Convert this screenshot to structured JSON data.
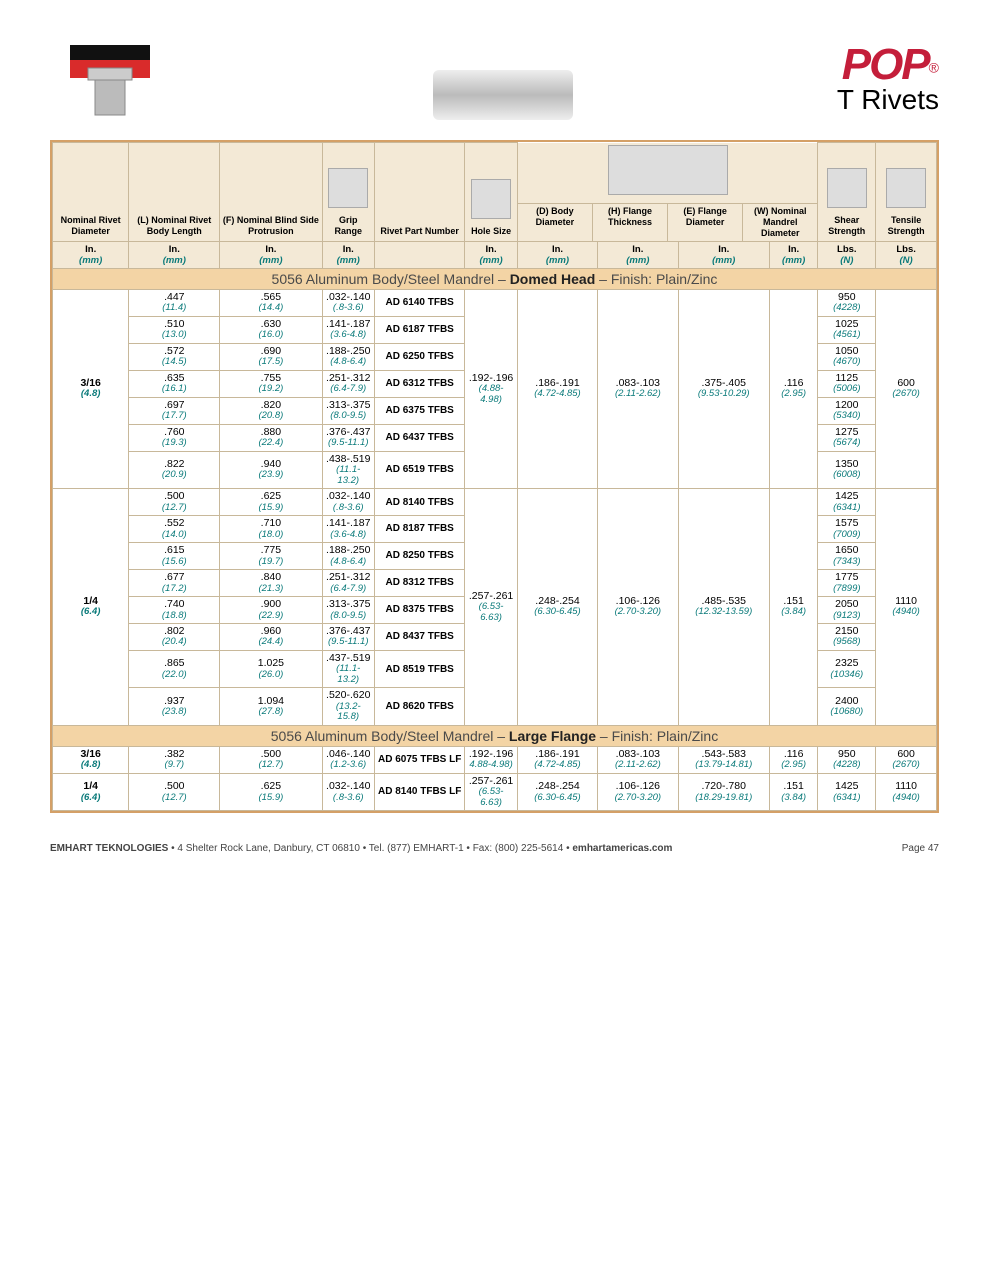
{
  "brand": {
    "name": "POP",
    "reg": "®",
    "subtitle": "T Rivets"
  },
  "columns": [
    {
      "h": "Nominal Rivet Diameter",
      "u1": "In.",
      "u2": "(mm)"
    },
    {
      "h": "(L) Nominal Rivet Body Length",
      "u1": "In.",
      "u2": "(mm)"
    },
    {
      "h": "(F) Nominal Blind Side Protrusion",
      "u1": "In.",
      "u2": "(mm)"
    },
    {
      "h": "Grip Range",
      "u1": "In.",
      "u2": "(mm)"
    },
    {
      "h": "Rivet Part Number",
      "u1": "",
      "u2": ""
    },
    {
      "h": "Hole Size",
      "u1": "In.",
      "u2": "(mm)"
    },
    {
      "h": "(D) Body Diameter",
      "u1": "In.",
      "u2": "(mm)"
    },
    {
      "h": "(H) Flange Thickness",
      "u1": "In.",
      "u2": "(mm)"
    },
    {
      "h": "(E) Flange Diameter",
      "u1": "In.",
      "u2": "(mm)"
    },
    {
      "h": "(W) Nominal Mandrel Diameter",
      "u1": "In.",
      "u2": "(mm)"
    },
    {
      "h": "Shear Strength",
      "u1": "Lbs.",
      "u2": "(N)"
    },
    {
      "h": "Tensile Strength",
      "u1": "Lbs.",
      "u2": "(N)"
    }
  ],
  "section1_title_pre": "5056 Aluminum Body/Steel Mandrel – ",
  "section1_title_bold": "Domed Head",
  "section1_title_post": " – Finish: Plain/Zinc",
  "group1": {
    "dia_in": "3/16",
    "dia_mm": "(4.8)",
    "hole_in": ".192-.196",
    "hole_mm": "(4.88-4.98)",
    "body_in": ".186-.191",
    "body_mm": "(4.72-4.85)",
    "flth_in": ".083-.103",
    "flth_mm": "(2.11-2.62)",
    "fldi_in": ".375-.405",
    "fldi_mm": "(9.53-10.29)",
    "mand_in": ".116",
    "mand_mm": "(2.95)",
    "tens_in": "600",
    "tens_mm": "(2670)",
    "rows": [
      {
        "L_in": ".447",
        "L_mm": "(11.4)",
        "F_in": ".565",
        "F_mm": "(14.4)",
        "G_in": ".032-.140",
        "G_mm": "(.8-3.6)",
        "part": "AD 6140 TFBS",
        "sh_in": "950",
        "sh_mm": "(4228)"
      },
      {
        "L_in": ".510",
        "L_mm": "(13.0)",
        "F_in": ".630",
        "F_mm": "(16.0)",
        "G_in": ".141-.187",
        "G_mm": "(3.6-4.8)",
        "part": "AD 6187 TFBS",
        "sh_in": "1025",
        "sh_mm": "(4561)"
      },
      {
        "L_in": ".572",
        "L_mm": "(14.5)",
        "F_in": ".690",
        "F_mm": "(17.5)",
        "G_in": ".188-.250",
        "G_mm": "(4.8-6.4)",
        "part": "AD 6250 TFBS",
        "sh_in": "1050",
        "sh_mm": "(4670)"
      },
      {
        "L_in": ".635",
        "L_mm": "(16.1)",
        "F_in": ".755",
        "F_mm": "(19.2)",
        "G_in": ".251-.312",
        "G_mm": "(6.4-7.9)",
        "part": "AD 6312 TFBS",
        "sh_in": "1125",
        "sh_mm": "(5006)"
      },
      {
        "L_in": ".697",
        "L_mm": "(17.7)",
        "F_in": ".820",
        "F_mm": "(20.8)",
        "G_in": ".313-.375",
        "G_mm": "(8.0-9.5)",
        "part": "AD 6375 TFBS",
        "sh_in": "1200",
        "sh_mm": "(5340)"
      },
      {
        "L_in": ".760",
        "L_mm": "(19.3)",
        "F_in": ".880",
        "F_mm": "(22.4)",
        "G_in": ".376-.437",
        "G_mm": "(9.5-11.1)",
        "part": "AD 6437 TFBS",
        "sh_in": "1275",
        "sh_mm": "(5674)"
      },
      {
        "L_in": ".822",
        "L_mm": "(20.9)",
        "F_in": ".940",
        "F_mm": "(23.9)",
        "G_in": ".438-.519",
        "G_mm": "(11.1-13.2)",
        "part": "AD 6519 TFBS",
        "sh_in": "1350",
        "sh_mm": "(6008)"
      }
    ]
  },
  "group2": {
    "dia_in": "1/4",
    "dia_mm": "(6.4)",
    "hole_in": ".257-.261",
    "hole_mm": "(6.53-6.63)",
    "body_in": ".248-.254",
    "body_mm": "(6.30-6.45)",
    "flth_in": ".106-.126",
    "flth_mm": "(2.70-3.20)",
    "fldi_in": ".485-.535",
    "fldi_mm": "(12.32-13.59)",
    "mand_in": ".151",
    "mand_mm": "(3.84)",
    "tens_in": "1110",
    "tens_mm": "(4940)",
    "rows": [
      {
        "L_in": ".500",
        "L_mm": "(12.7)",
        "F_in": ".625",
        "F_mm": "(15.9)",
        "G_in": ".032-.140",
        "G_mm": "(.8-3.6)",
        "part": "AD 8140 TFBS",
        "sh_in": "1425",
        "sh_mm": "(6341)"
      },
      {
        "L_in": ".552",
        "L_mm": "(14.0)",
        "F_in": ".710",
        "F_mm": "(18.0)",
        "G_in": ".141-.187",
        "G_mm": "(3.6-4.8)",
        "part": "AD 8187 TFBS",
        "sh_in": "1575",
        "sh_mm": "(7009)"
      },
      {
        "L_in": ".615",
        "L_mm": "(15.6)",
        "F_in": ".775",
        "F_mm": "(19.7)",
        "G_in": ".188-.250",
        "G_mm": "(4.8-6.4)",
        "part": "AD 8250 TFBS",
        "sh_in": "1650",
        "sh_mm": "(7343)"
      },
      {
        "L_in": ".677",
        "L_mm": "(17.2)",
        "F_in": ".840",
        "F_mm": "(21.3)",
        "G_in": ".251-.312",
        "G_mm": "(6.4-7.9)",
        "part": "AD 8312 TFBS",
        "sh_in": "1775",
        "sh_mm": "(7899)"
      },
      {
        "L_in": ".740",
        "L_mm": "(18.8)",
        "F_in": ".900",
        "F_mm": "(22.9)",
        "G_in": ".313-.375",
        "G_mm": "(8.0-9.5)",
        "part": "AD 8375 TFBS",
        "sh_in": "2050",
        "sh_mm": "(9123)"
      },
      {
        "L_in": ".802",
        "L_mm": "(20.4)",
        "F_in": ".960",
        "F_mm": "(24.4)",
        "G_in": ".376-.437",
        "G_mm": "(9.5-11.1)",
        "part": "AD 8437 TFBS",
        "sh_in": "2150",
        "sh_mm": "(9568)"
      },
      {
        "L_in": ".865",
        "L_mm": "(22.0)",
        "F_in": "1.025",
        "F_mm": "(26.0)",
        "G_in": ".437-.519",
        "G_mm": "(11.1-13.2)",
        "part": "AD 8519 TFBS",
        "sh_in": "2325",
        "sh_mm": "(10346)"
      },
      {
        "L_in": ".937",
        "L_mm": "(23.8)",
        "F_in": "1.094",
        "F_mm": "(27.8)",
        "G_in": ".520-.620",
        "G_mm": "(13.2-15.8)",
        "part": "AD 8620 TFBS",
        "sh_in": "2400",
        "sh_mm": "(10680)"
      }
    ]
  },
  "section2_title_pre": "5056 Aluminum Body/Steel Mandrel – ",
  "section2_title_bold": "Large Flange",
  "section2_title_post": " – Finish: Plain/Zinc",
  "lf1": {
    "dia_in": "3/16",
    "dia_mm": "(4.8)",
    "L_in": ".382",
    "L_mm": "(9.7)",
    "F_in": ".500",
    "F_mm": "(12.7)",
    "G_in": ".046-.140",
    "G_mm": "(1.2-3.6)",
    "part": "AD 6075 TFBS LF",
    "hole_in": ".192-.196",
    "hole_mm": "4.88-4.98)",
    "body_in": ".186-.191",
    "body_mm": "(4.72-4.85)",
    "flth_in": ".083-.103",
    "flth_mm": "(2.11-2.62)",
    "fldi_in": ".543-.583",
    "fldi_mm": "(13.79-14.81)",
    "mand_in": ".116",
    "mand_mm": "(2.95)",
    "sh_in": "950",
    "sh_mm": "(4228)",
    "tens_in": "600",
    "tens_mm": "(2670)"
  },
  "lf2": {
    "dia_in": "1/4",
    "dia_mm": "(6.4)",
    "L_in": ".500",
    "L_mm": "(12.7)",
    "F_in": ".625",
    "F_mm": "(15.9)",
    "G_in": ".032-.140",
    "G_mm": "(.8-3.6)",
    "part": "AD 8140 TFBS LF",
    "hole_in": ".257-.261",
    "hole_mm": "(6.53-6.63)",
    "body_in": ".248-.254",
    "body_mm": "(6.30-6.45)",
    "flth_in": ".106-.126",
    "flth_mm": "(2.70-3.20)",
    "fldi_in": ".720-.780",
    "fldi_mm": "(18.29-19.81)",
    "mand_in": ".151",
    "mand_mm": "(3.84)",
    "sh_in": "1425",
    "sh_mm": "(6341)",
    "tens_in": "1110",
    "tens_mm": "(4940)"
  },
  "footer": {
    "company": "EMHART TEKNOLOGIES",
    "addr": " • 4 Shelter Rock Lane, Danbury, CT 06810 • Tel. (877) EMHART-1 • Fax: (800) 225-5614 • ",
    "site": "emhartamericas.com",
    "page": "Page 47"
  }
}
